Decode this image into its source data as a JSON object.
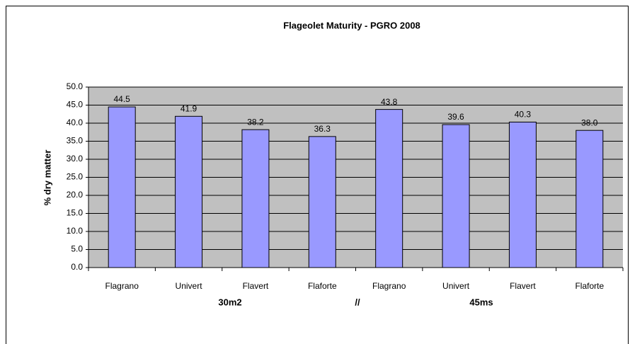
{
  "chart_data": {
    "type": "bar",
    "title": "Flageolet Maturity  - PGRO 2008",
    "ylabel": "% dry matter",
    "categories": [
      "Flagrano",
      "Univert",
      "Flavert",
      "Flaforte",
      "Flagrano",
      "Univert",
      "Flavert",
      "Flaforte"
    ],
    "values": [
      44.5,
      41.9,
      38.2,
      36.3,
      43.8,
      39.6,
      40.3,
      38.0
    ],
    "value_labels": [
      "44.5",
      "41.9",
      "38.2",
      "36.3",
      "43.8",
      "39.6",
      "40.3",
      "38.0"
    ],
    "xlabel_parts": [
      "30m2",
      "//",
      "45ms"
    ],
    "color": "#9999ff",
    "plot_background": "#c0c0c0",
    "ylim": [
      0,
      50
    ],
    "yticks": [
      {
        "value": 0,
        "label": "0.0"
      },
      {
        "value": 5,
        "label": "5.0"
      },
      {
        "value": 10,
        "label": "10.0"
      },
      {
        "value": 15,
        "label": "15.0"
      },
      {
        "value": 20,
        "label": "20.0"
      },
      {
        "value": 25,
        "label": "25.0"
      },
      {
        "value": 30,
        "label": "30.0"
      },
      {
        "value": 35,
        "label": "35.0"
      },
      {
        "value": 40,
        "label": "40.0"
      },
      {
        "value": 45,
        "label": "45.0"
      },
      {
        "value": 50,
        "label": "50.0"
      }
    ],
    "grid": true
  }
}
